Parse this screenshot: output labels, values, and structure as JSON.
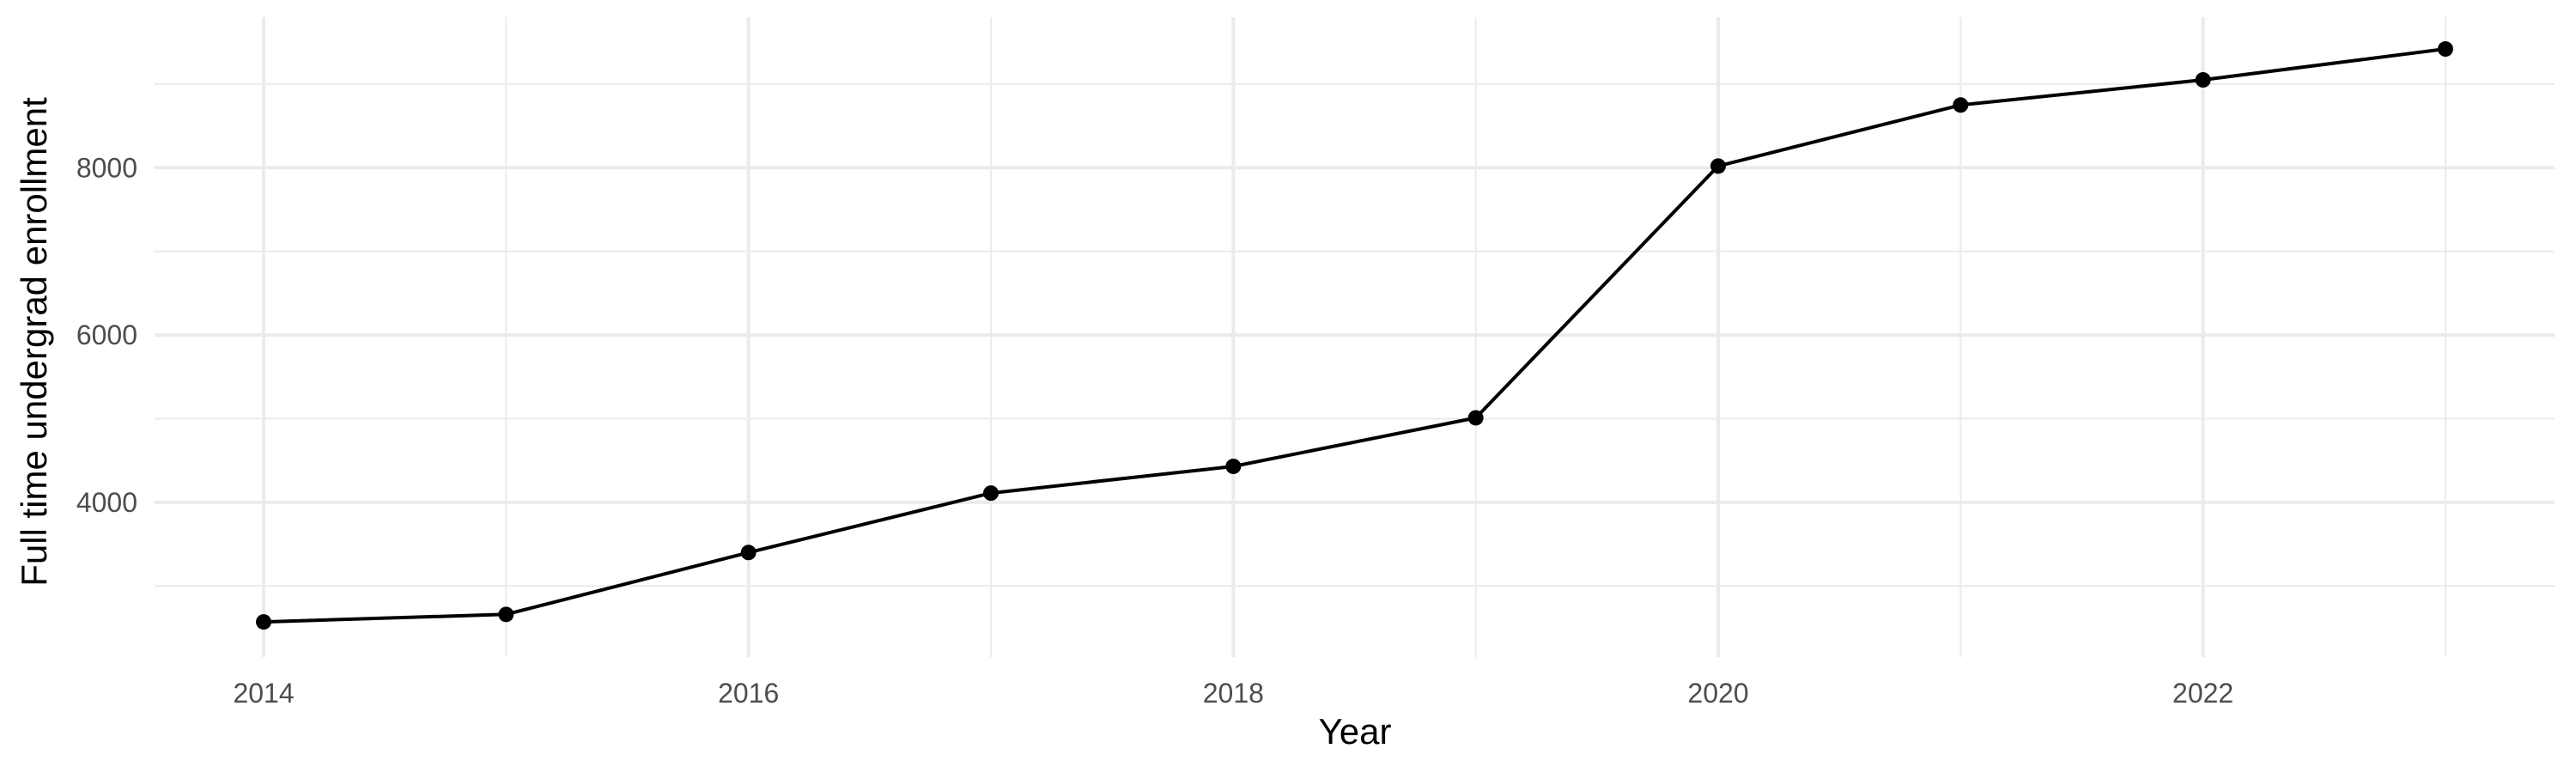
{
  "chart_data": {
    "type": "line",
    "title": "",
    "xlabel": "Year",
    "ylabel": "Full time undergrad enrollment",
    "x": [
      2014,
      2015,
      2016,
      2017,
      2018,
      2019,
      2020,
      2021,
      2022,
      2023
    ],
    "series": [
      {
        "values": [
          2570,
          2660,
          3400,
          4110,
          4430,
          5010,
          8020,
          8750,
          9050,
          9420
        ]
      }
    ],
    "xlim": [
      2013.55,
      2023.45
    ],
    "ylim": [
      2150,
      9800
    ],
    "x_ticks": [
      2014,
      2016,
      2018,
      2020,
      2022
    ],
    "x_tick_labels": [
      "2014",
      "2016",
      "2018",
      "2020",
      "2022"
    ],
    "y_ticks": [
      4000,
      6000,
      8000
    ],
    "y_tick_labels": [
      "4000",
      "6000",
      "8000"
    ],
    "x_minor_ticks": [
      2015,
      2017,
      2019,
      2021,
      2023
    ],
    "y_minor_ticks": [
      3000,
      5000,
      7000,
      9000
    ],
    "grid": true,
    "legend": "none",
    "colors": {
      "line": "#000000",
      "point": "#000000",
      "grid": "#ebebeb",
      "tick_text": "#4d4d4d",
      "title_text": "#000000"
    }
  }
}
